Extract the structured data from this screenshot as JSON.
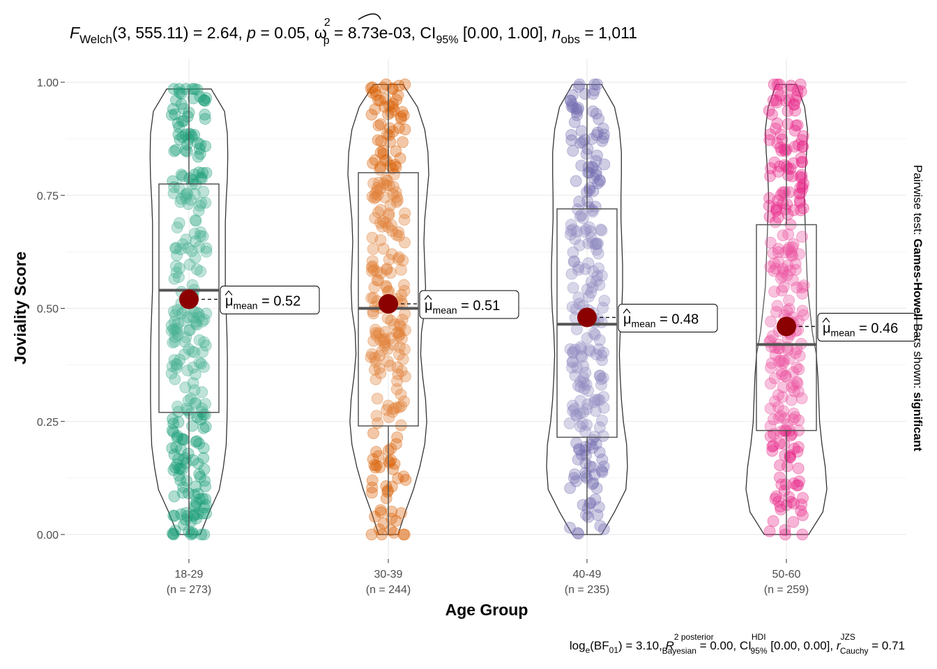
{
  "chart_data": {
    "type": "violin-box-scatter",
    "title": {
      "f_label": "F",
      "f_sub": "Welch",
      "df": "(3, 555.11)",
      "f_value": " = 2.64, ",
      "p_label": "p",
      "p_value": " = 0.05, ",
      "omega": "ω",
      "omega_sup": "2",
      "omega_sub": "p",
      "omega_value": " = 8.73e-03, CI",
      "ci_sub": "95%",
      "ci_value": " [0.00, 1.00], ",
      "n_label": "n",
      "n_sub": "obs",
      "n_value": " = 1,011"
    },
    "xlabel": "Age Group",
    "ylabel": "Joviality Score",
    "ylim": [
      0,
      1
    ],
    "yticks": [
      "0.00",
      "0.25",
      "0.50",
      "0.75",
      "1.00"
    ],
    "ytick_values": [
      0,
      0.25,
      0.5,
      0.75,
      1
    ],
    "grid": true,
    "mean_label": "μ",
    "mean_label_sub": "mean",
    "groups": [
      {
        "name": "18-29",
        "n_label": "(n = 273)",
        "n": 273,
        "color": "#1b9e77",
        "q1": 0.27,
        "median": 0.54,
        "q3": 0.775,
        "whisker_low": 0.0,
        "whisker_high": 0.985,
        "mean": 0.52,
        "mean_text": " = 0.52",
        "violin_profile": [
          0.28,
          0.5,
          0.75,
          0.85,
          0.92,
          0.94,
          0.95,
          0.95,
          0.95,
          0.94,
          0.92,
          0.9,
          0.9,
          0.9,
          0.9,
          0.92,
          0.95,
          0.96,
          0.95,
          0.88,
          0.55
        ]
      },
      {
        "name": "30-39",
        "n_label": "(n = 244)",
        "n": 244,
        "color": "#d95f02",
        "q1": 0.24,
        "median": 0.5,
        "q3": 0.8,
        "whisker_low": 0.0,
        "whisker_high": 0.995,
        "mean": 0.51,
        "mean_text": " = 0.51",
        "violin_profile": [
          0.24,
          0.42,
          0.62,
          0.78,
          0.9,
          0.95,
          0.92,
          0.85,
          0.8,
          0.82,
          0.9,
          0.92,
          0.9,
          0.88,
          0.9,
          0.95,
          1.0,
          0.98,
          0.9,
          0.72,
          0.36
        ]
      },
      {
        "name": "40-49",
        "n_label": "(n = 235)",
        "n": 235,
        "color": "#7570b3",
        "q1": 0.215,
        "median": 0.465,
        "q3": 0.72,
        "whisker_low": 0.0,
        "whisker_high": 0.995,
        "mean": 0.48,
        "mean_text": " = 0.48",
        "violin_profile": [
          0.36,
          0.68,
          0.96,
          1.0,
          0.98,
          0.9,
          0.85,
          0.82,
          0.8,
          0.82,
          0.86,
          0.88,
          0.88,
          0.86,
          0.84,
          0.84,
          0.85,
          0.85,
          0.8,
          0.68,
          0.36
        ]
      },
      {
        "name": "50-60",
        "n_label": "(n = 259)",
        "n": 259,
        "color": "#e7298a",
        "q1": 0.23,
        "median": 0.42,
        "q3": 0.685,
        "whisker_low": 0.0,
        "whisker_high": 0.995,
        "mean": 0.46,
        "mean_text": " = 0.46",
        "violin_profile": [
          0.55,
          0.9,
          1.0,
          0.96,
          0.88,
          0.82,
          0.8,
          0.78,
          0.74,
          0.64,
          0.58,
          0.52,
          0.5,
          0.48,
          0.46,
          0.44,
          0.46,
          0.5,
          0.52,
          0.45,
          0.25
        ]
      }
    ],
    "side_label": {
      "prefix": "Pairwise test: ",
      "test": "Games-Howell",
      "middle": " Bars shown: ",
      "shown": "significant"
    },
    "caption": {
      "log_label": "log",
      "log_sub": "e",
      "bf_label": "(BF",
      "bf_sub": "01",
      "bf_value": ") = 3.10, ",
      "r_label": "R",
      "r_sup": "2 posterior",
      "r_sub": "Bayesian",
      "r_value": " = 0.00, CI",
      "ci_sup": "HDI",
      "ci_sub": "95%",
      "ci_value": " [0.00, 0.00], ",
      "rc_label": "r",
      "rc_sup": "JZS",
      "rc_sub": "Cauchy",
      "rc_value": " = 0.71"
    }
  }
}
